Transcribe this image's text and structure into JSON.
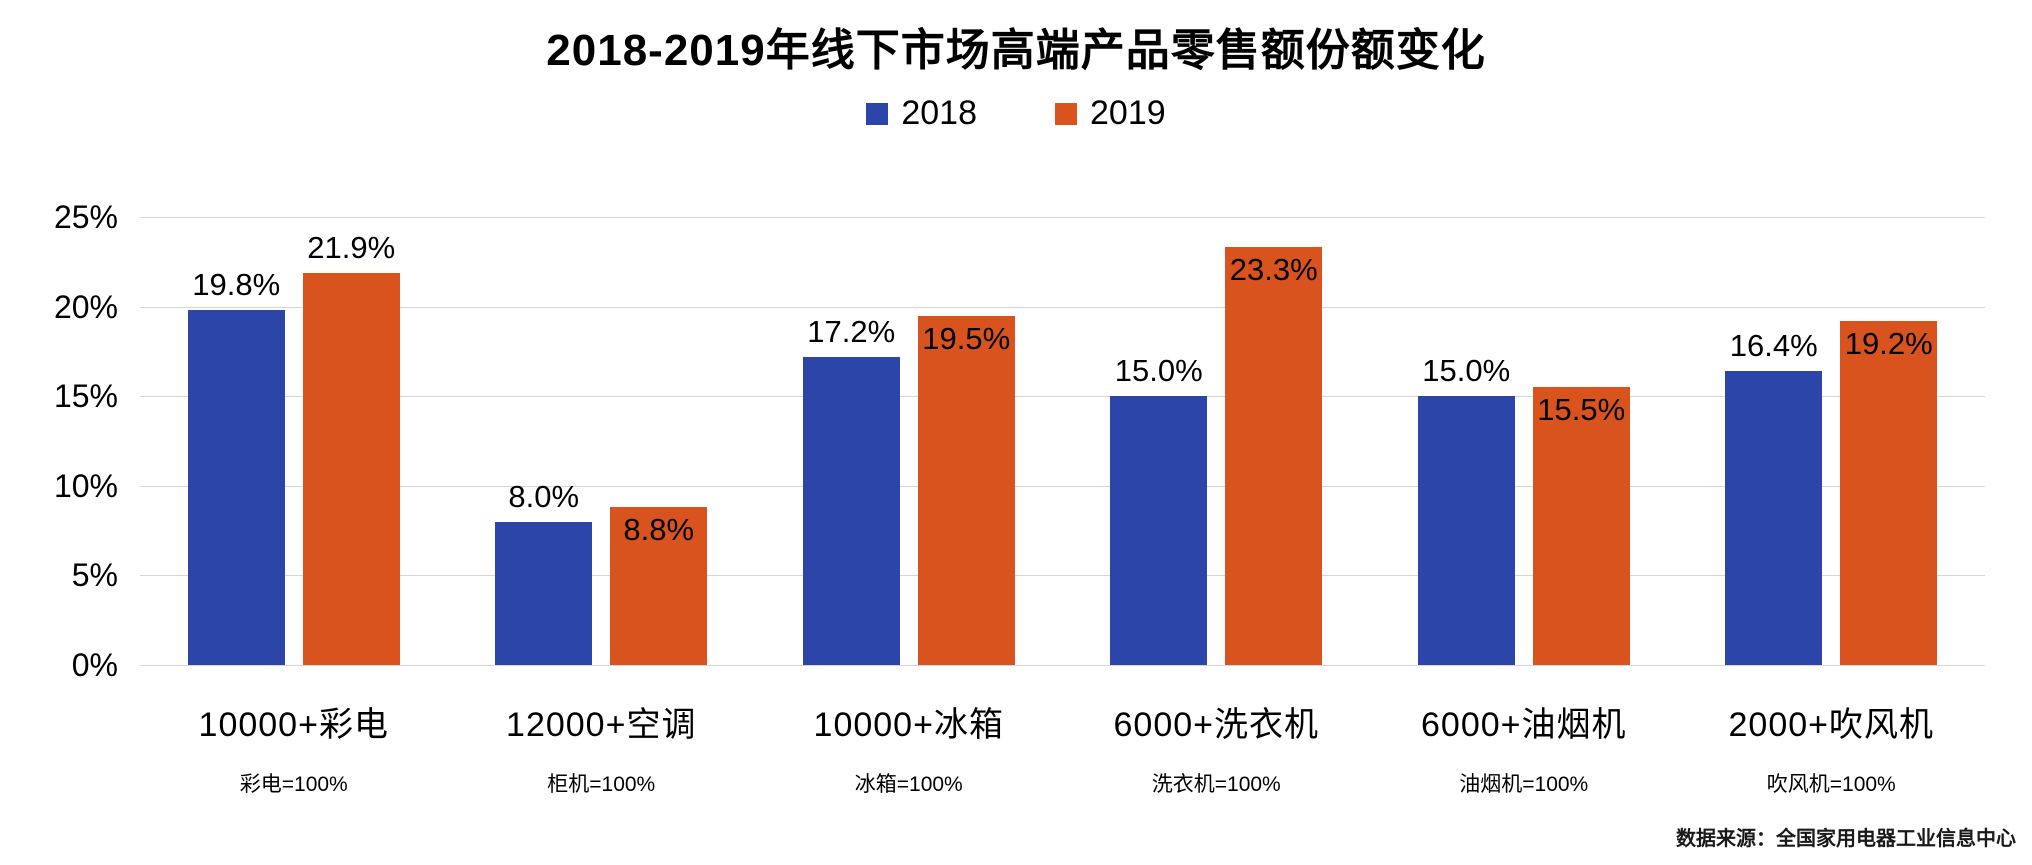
{
  "chart_data": {
    "type": "bar",
    "title": "2018-2019年线下市场高端产品零售额份额变化",
    "legend_position": "top",
    "grid": true,
    "y_axis": {
      "ticks": [
        "25%",
        "20%",
        "15%",
        "10%",
        "5%",
        "0%"
      ],
      "min": 0,
      "max": 25
    },
    "categories": [
      {
        "label": "10000+彩电",
        "sublabel": "彩电=100%"
      },
      {
        "label": "12000+空调",
        "sublabel": "柜机=100%"
      },
      {
        "label": "10000+冰箱",
        "sublabel": "冰箱=100%"
      },
      {
        "label": "6000+洗衣机",
        "sublabel": "洗衣机=100%"
      },
      {
        "label": "6000+油烟机",
        "sublabel": "油烟机=100%"
      },
      {
        "label": "2000+吹风机",
        "sublabel": "吹风机=100%"
      }
    ],
    "series": [
      {
        "name": "2018",
        "color": "#2b46a8",
        "values": [
          19.8,
          8.0,
          17.2,
          15.0,
          15.0,
          16.4
        ],
        "labels": [
          "19.8%",
          "8.0%",
          "17.2%",
          "15.0%",
          "15.0%",
          "16.4%"
        ],
        "label_pos": [
          "above",
          "above",
          "above",
          "above",
          "above",
          "above"
        ]
      },
      {
        "name": "2019",
        "color": "#d9531e",
        "values": [
          21.9,
          8.8,
          19.5,
          23.3,
          15.5,
          19.2
        ],
        "labels": [
          "21.9%",
          "8.8%",
          "19.5%",
          "23.3%",
          "15.5%",
          "19.2%"
        ],
        "label_pos": [
          "above",
          "inside",
          "inside",
          "inside",
          "inside",
          "inside"
        ]
      }
    ],
    "source": "数据来源：全国家用电器工业信息中心"
  }
}
